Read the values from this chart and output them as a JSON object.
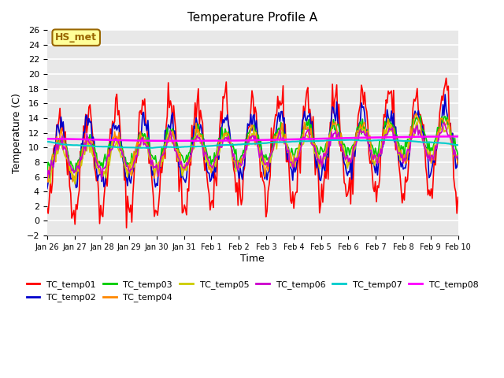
{
  "title": "Temperature Profile A",
  "xlabel": "Time",
  "ylabel": "Temperature (C)",
  "ylim": [
    -2,
    26
  ],
  "yticks": [
    -2,
    0,
    2,
    4,
    6,
    8,
    10,
    12,
    14,
    16,
    18,
    20,
    22,
    24,
    26
  ],
  "xtick_labels": [
    "Jan 26",
    "Jan 27",
    "Jan 28",
    "Jan 29",
    "Jan 30",
    "Jan 31",
    "Feb 1",
    "Feb 2",
    "Feb 3",
    "Feb 4",
    "Feb 5",
    "Feb 6",
    "Feb 7",
    "Feb 8",
    "Feb 9",
    "Feb 10"
  ],
  "annotation_text": "HS_met",
  "annotation_bg": "#ffff99",
  "annotation_border": "#996600",
  "bg_color": "#e8e8e8",
  "grid_color": "#ffffff",
  "series_colors": {
    "TC_temp01": "#ff0000",
    "TC_temp02": "#0000cc",
    "TC_temp03": "#00cc00",
    "TC_temp04": "#ff8800",
    "TC_temp05": "#cccc00",
    "TC_temp06": "#cc00cc",
    "TC_temp07": "#00cccc",
    "TC_temp08": "#ff00ff"
  },
  "legend_order": [
    "TC_temp01",
    "TC_temp02",
    "TC_temp03",
    "TC_temp04",
    "TC_temp05",
    "TC_temp06",
    "TC_temp07",
    "TC_temp08"
  ]
}
